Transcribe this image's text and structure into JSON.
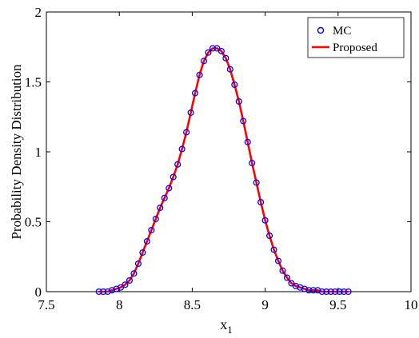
{
  "chart_data": {
    "type": "line",
    "title": "",
    "xlabel": "x",
    "xlabel_subscript": "1",
    "ylabel": "Probability Density Distribution",
    "xlim": [
      7.5,
      10
    ],
    "ylim": [
      0,
      2
    ],
    "xticks": [
      7.5,
      8,
      8.5,
      9,
      9.5,
      10
    ],
    "xtick_labels": [
      "7.5",
      "8",
      "8.5",
      "9",
      "9.5",
      "10"
    ],
    "yticks": [
      0,
      0.5,
      1,
      1.5,
      2
    ],
    "ytick_labels": [
      "0",
      "0.5",
      "1",
      "1.5",
      "2"
    ],
    "grid": false,
    "legend_position": "top-right",
    "colors": {
      "mc": "#0000ff",
      "proposed": "#ff0000"
    },
    "series": [
      {
        "name": "MC",
        "style": "markers",
        "marker": "circle",
        "x": [
          7.86,
          7.89,
          7.92,
          7.95,
          7.98,
          8.01,
          8.04,
          8.07,
          8.1,
          8.13,
          8.16,
          8.19,
          8.22,
          8.25,
          8.28,
          8.31,
          8.34,
          8.37,
          8.4,
          8.43,
          8.46,
          8.49,
          8.52,
          8.55,
          8.58,
          8.61,
          8.64,
          8.67,
          8.7,
          8.73,
          8.76,
          8.79,
          8.82,
          8.85,
          8.88,
          8.91,
          8.94,
          8.97,
          9.0,
          9.03,
          9.06,
          9.09,
          9.12,
          9.15,
          9.18,
          9.21,
          9.24,
          9.27,
          9.3,
          9.33,
          9.36,
          9.39,
          9.42,
          9.45,
          9.48,
          9.51,
          9.54,
          9.57
        ],
        "y": [
          0.0,
          0.0,
          0.0,
          0.01,
          0.02,
          0.03,
          0.05,
          0.08,
          0.13,
          0.2,
          0.28,
          0.36,
          0.44,
          0.52,
          0.6,
          0.67,
          0.74,
          0.82,
          0.91,
          1.02,
          1.14,
          1.28,
          1.42,
          1.55,
          1.65,
          1.71,
          1.74,
          1.74,
          1.72,
          1.67,
          1.59,
          1.48,
          1.36,
          1.22,
          1.07,
          0.92,
          0.78,
          0.64,
          0.51,
          0.4,
          0.3,
          0.22,
          0.15,
          0.1,
          0.06,
          0.04,
          0.03,
          0.02,
          0.01,
          0.01,
          0.01,
          0.0,
          0.0,
          0.0,
          0.0,
          0.0,
          0.0,
          0.0
        ]
      },
      {
        "name": "Proposed",
        "style": "line",
        "x": [
          7.86,
          7.89,
          7.92,
          7.95,
          7.98,
          8.01,
          8.04,
          8.07,
          8.1,
          8.13,
          8.16,
          8.19,
          8.22,
          8.25,
          8.28,
          8.31,
          8.34,
          8.37,
          8.4,
          8.43,
          8.46,
          8.49,
          8.52,
          8.55,
          8.58,
          8.61,
          8.64,
          8.67,
          8.7,
          8.73,
          8.76,
          8.79,
          8.82,
          8.85,
          8.88,
          8.91,
          8.94,
          8.97,
          9.0,
          9.03,
          9.06,
          9.09,
          9.12,
          9.15,
          9.18,
          9.21,
          9.24,
          9.27,
          9.3,
          9.33,
          9.36,
          9.39,
          9.42,
          9.45,
          9.48,
          9.51,
          9.54,
          9.57
        ],
        "y": [
          0.0,
          0.0,
          0.0,
          0.01,
          0.02,
          0.03,
          0.05,
          0.08,
          0.13,
          0.2,
          0.28,
          0.36,
          0.44,
          0.52,
          0.6,
          0.67,
          0.74,
          0.82,
          0.91,
          1.02,
          1.14,
          1.28,
          1.42,
          1.55,
          1.65,
          1.71,
          1.74,
          1.74,
          1.72,
          1.67,
          1.59,
          1.48,
          1.36,
          1.22,
          1.07,
          0.92,
          0.78,
          0.64,
          0.51,
          0.4,
          0.3,
          0.22,
          0.15,
          0.1,
          0.06,
          0.04,
          0.03,
          0.02,
          0.01,
          0.01,
          0.01,
          0.0,
          0.0,
          0.0,
          0.0,
          0.0,
          0.0,
          0.0
        ]
      }
    ]
  }
}
